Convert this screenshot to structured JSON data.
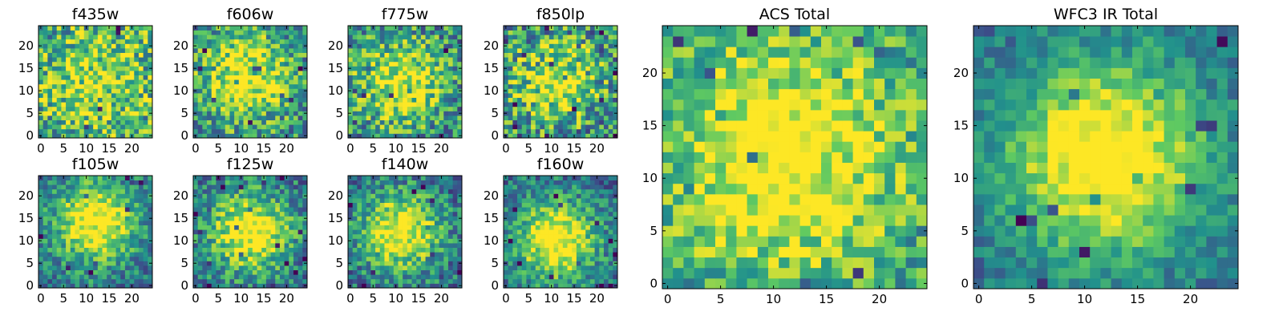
{
  "figure": {
    "background": "#ffffff",
    "colormap": "viridis",
    "colormap_stops": [
      "#440154",
      "#3b528b",
      "#21918c",
      "#5ec962",
      "#fde725"
    ]
  },
  "chart_data": [
    {
      "type": "heatmap",
      "title": "f435w",
      "grid_size": 25,
      "x_ticks": [
        0,
        5,
        10,
        15,
        20
      ],
      "y_ticks": [
        0,
        5,
        10,
        15,
        20
      ],
      "xlim": [
        0,
        24
      ],
      "ylim": [
        0,
        24
      ],
      "profile": {
        "center": [
          12,
          12
        ],
        "peak": 0.62,
        "background": 0.55,
        "sigma": 9,
        "noise": 0.36,
        "seed": 11
      }
    },
    {
      "type": "heatmap",
      "title": "f606w",
      "grid_size": 25,
      "x_ticks": [
        0,
        5,
        10,
        15,
        20
      ],
      "y_ticks": [
        0,
        5,
        10,
        15,
        20
      ],
      "xlim": [
        0,
        24
      ],
      "ylim": [
        0,
        24
      ],
      "profile": {
        "center": [
          11,
          13
        ],
        "peak": 0.78,
        "background": 0.48,
        "sigma": 7,
        "noise": 0.32,
        "seed": 23
      }
    },
    {
      "type": "heatmap",
      "title": "f775w",
      "grid_size": 25,
      "x_ticks": [
        0,
        5,
        10,
        15,
        20
      ],
      "y_ticks": [
        0,
        5,
        10,
        15,
        20
      ],
      "xlim": [
        0,
        24
      ],
      "ylim": [
        0,
        24
      ],
      "profile": {
        "center": [
          11,
          12
        ],
        "peak": 0.72,
        "background": 0.46,
        "sigma": 7,
        "noise": 0.34,
        "seed": 37
      }
    },
    {
      "type": "heatmap",
      "title": "f850lp",
      "grid_size": 25,
      "x_ticks": [
        0,
        5,
        10,
        15,
        20
      ],
      "y_ticks": [
        0,
        5,
        10,
        15,
        20
      ],
      "xlim": [
        0,
        24
      ],
      "ylim": [
        0,
        24
      ],
      "profile": {
        "center": [
          11,
          12
        ],
        "peak": 0.7,
        "background": 0.45,
        "sigma": 7,
        "noise": 0.38,
        "seed": 41
      }
    },
    {
      "type": "heatmap",
      "title": "f105w",
      "grid_size": 25,
      "x_ticks": [
        0,
        5,
        10,
        15,
        20
      ],
      "y_ticks": [
        0,
        5,
        10,
        15,
        20
      ],
      "xlim": [
        0,
        24
      ],
      "ylim": [
        0,
        24
      ],
      "profile": {
        "center": [
          12,
          14
        ],
        "peak": 0.86,
        "background": 0.4,
        "sigma": 6,
        "noise": 0.24,
        "seed": 53
      }
    },
    {
      "type": "heatmap",
      "title": "f125w",
      "grid_size": 25,
      "x_ticks": [
        0,
        5,
        10,
        15,
        20
      ],
      "y_ticks": [
        0,
        5,
        10,
        15,
        20
      ],
      "xlim": [
        0,
        24
      ],
      "ylim": [
        0,
        24
      ],
      "profile": {
        "center": [
          12,
          12
        ],
        "peak": 0.84,
        "background": 0.4,
        "sigma": 6,
        "noise": 0.26,
        "seed": 67
      }
    },
    {
      "type": "heatmap",
      "title": "f140w",
      "grid_size": 25,
      "x_ticks": [
        0,
        5,
        10,
        15,
        20
      ],
      "y_ticks": [
        0,
        5,
        10,
        15,
        20
      ],
      "xlim": [
        0,
        24
      ],
      "ylim": [
        0,
        24
      ],
      "profile": {
        "center": [
          11,
          12
        ],
        "peak": 0.8,
        "background": 0.38,
        "sigma": 6,
        "noise": 0.26,
        "seed": 79
      }
    },
    {
      "type": "heatmap",
      "title": "f160w",
      "grid_size": 25,
      "x_ticks": [
        0,
        5,
        10,
        15,
        20
      ],
      "y_ticks": [
        0,
        5,
        10,
        15,
        20
      ],
      "xlim": [
        0,
        24
      ],
      "ylim": [
        0,
        24
      ],
      "profile": {
        "center": [
          11,
          10
        ],
        "peak": 0.86,
        "background": 0.38,
        "sigma": 6,
        "noise": 0.24,
        "seed": 83
      }
    },
    {
      "type": "heatmap",
      "title": "ACS Total",
      "grid_size": 25,
      "x_ticks": [
        0,
        5,
        10,
        15,
        20
      ],
      "y_ticks": [
        0,
        5,
        10,
        15,
        20
      ],
      "xlim": [
        0,
        24
      ],
      "ylim": [
        0,
        24
      ],
      "profile": {
        "center": [
          11,
          12
        ],
        "peak": 0.84,
        "background": 0.52,
        "sigma": 8,
        "noise": 0.26,
        "seed": 97
      }
    },
    {
      "type": "heatmap",
      "title": "WFC3 IR Total",
      "grid_size": 25,
      "x_ticks": [
        0,
        5,
        10,
        15,
        20
      ],
      "y_ticks": [
        0,
        5,
        10,
        15,
        20
      ],
      "xlim": [
        0,
        24
      ],
      "ylim": [
        0,
        24
      ],
      "profile": {
        "center": [
          12,
          12
        ],
        "peak": 0.9,
        "background": 0.36,
        "sigma": 6.5,
        "noise": 0.16,
        "seed": 101
      }
    }
  ]
}
